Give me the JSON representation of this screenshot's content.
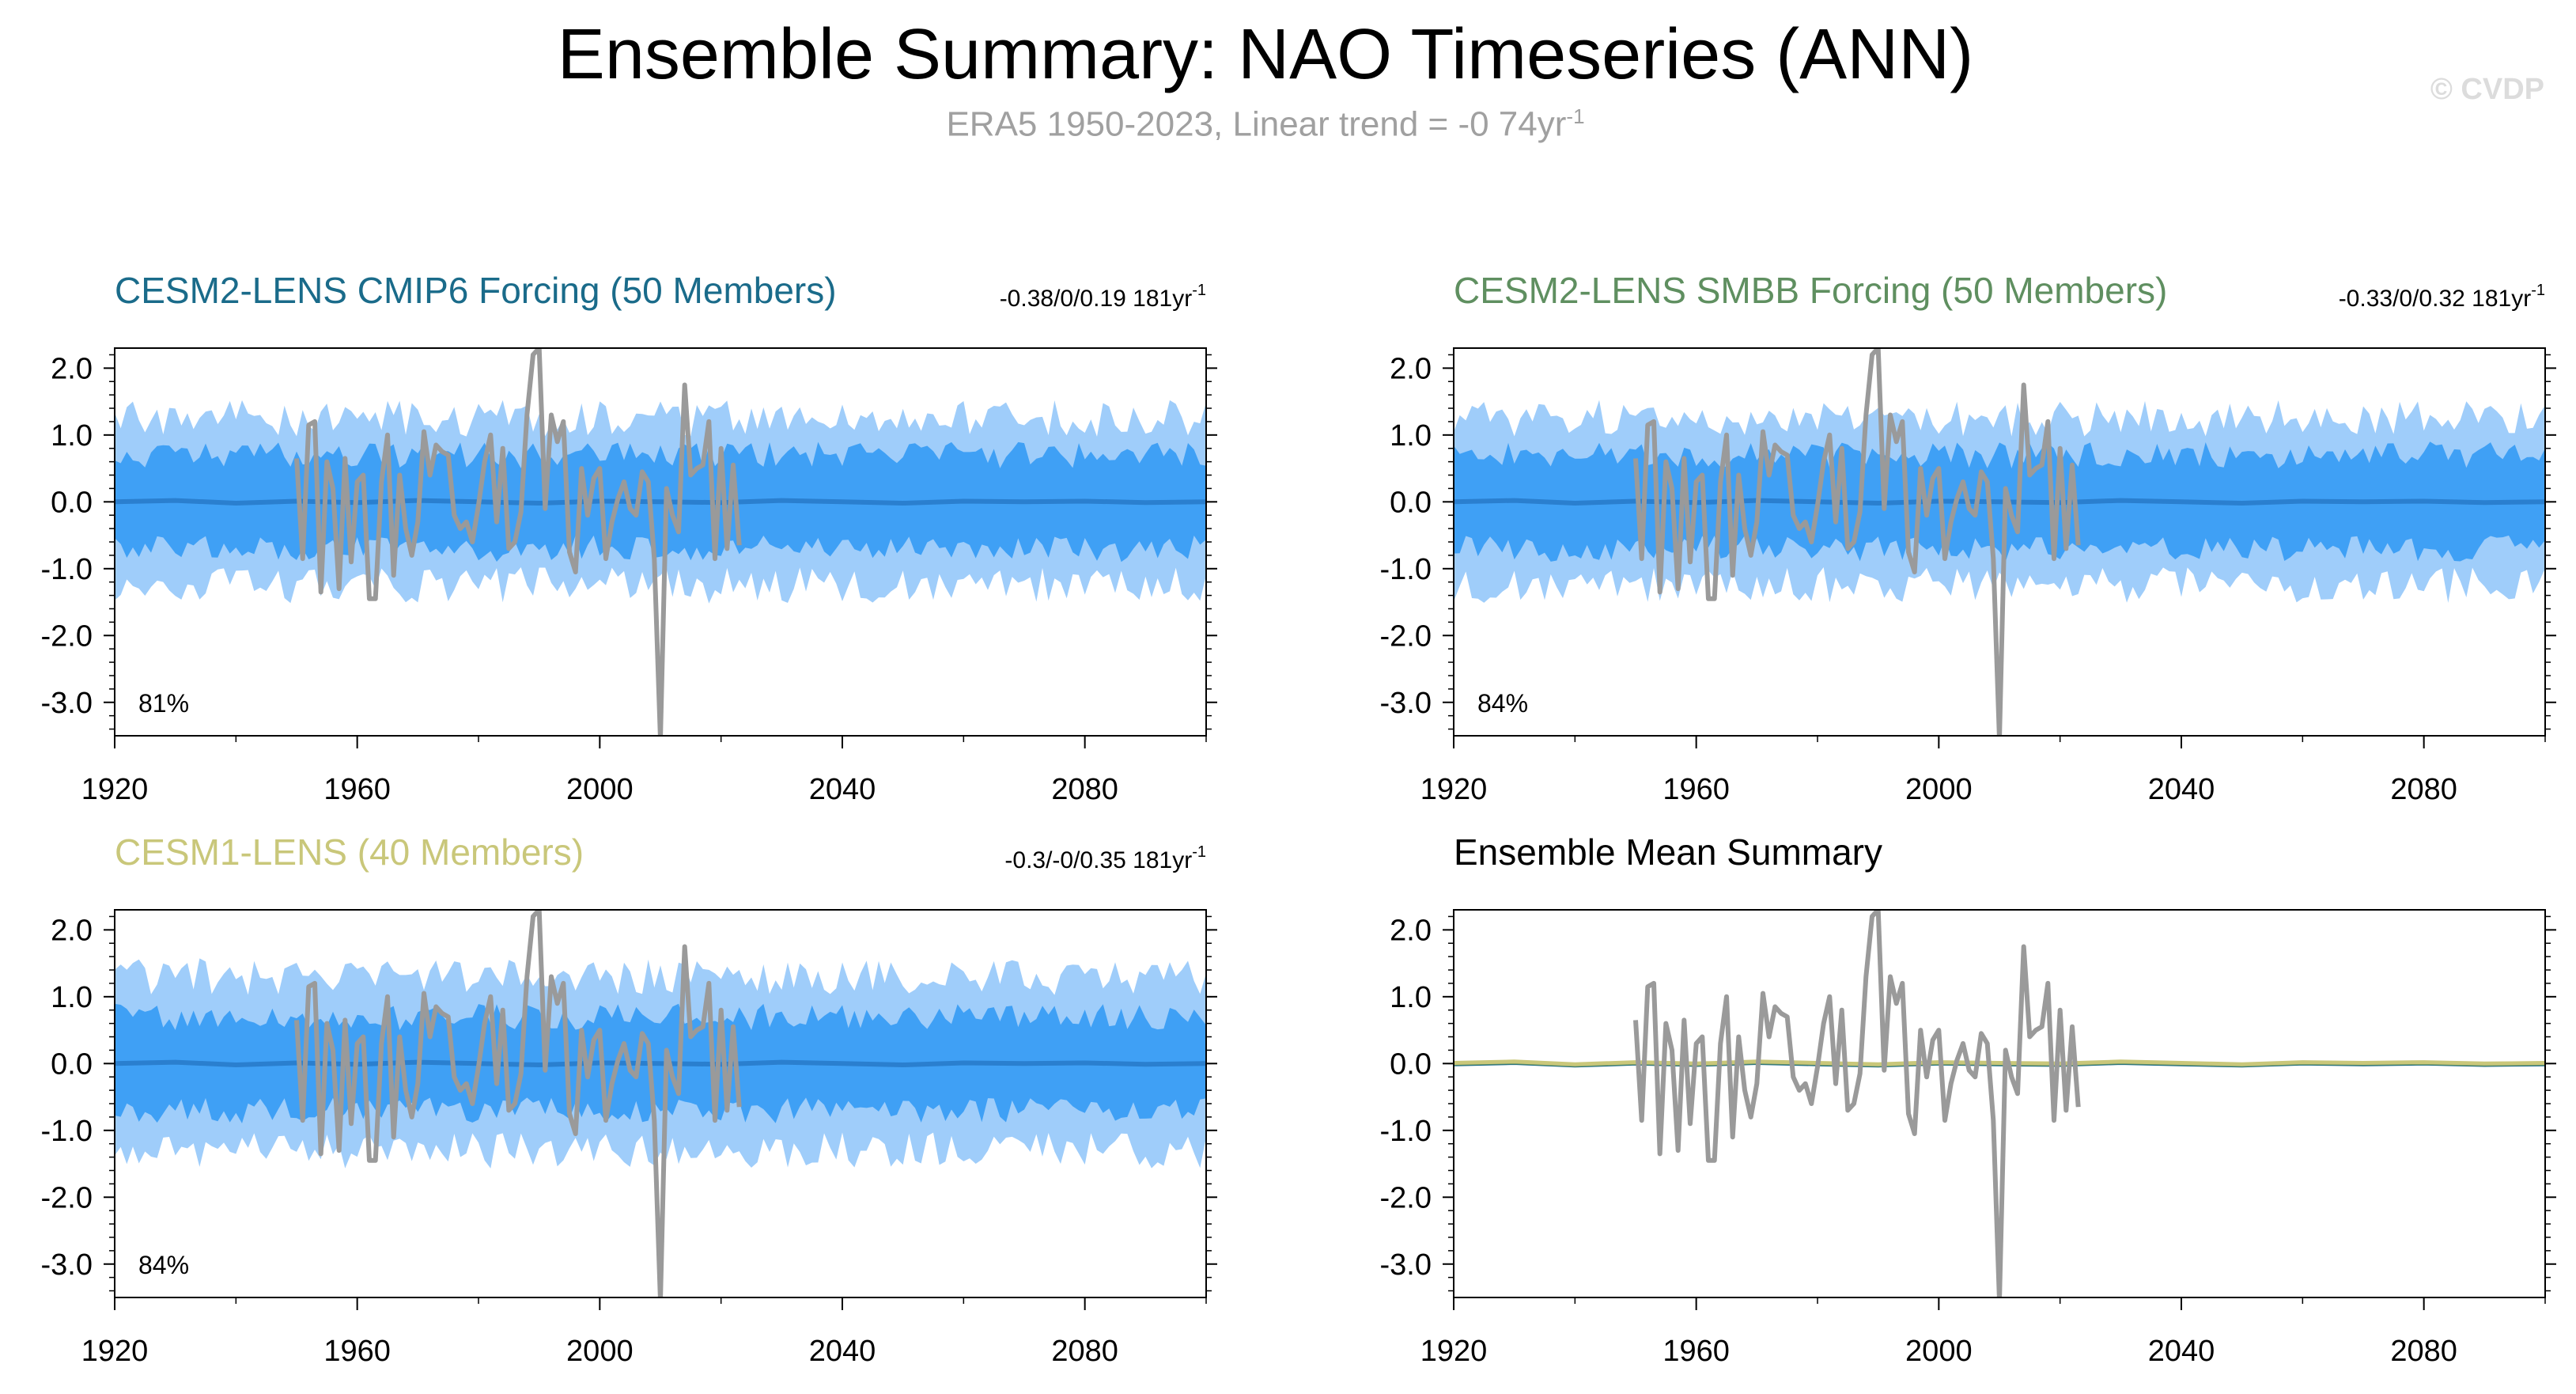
{
  "title": "Ensemble Summary: NAO Timeseries (ANN)",
  "subtitle_main": "ERA5 1950-2023, Linear trend = -0 74yr",
  "subtitle_sup": "-1",
  "copyright": "© CVDP",
  "colors": {
    "inner_band": "#3fa0f5",
    "outer_band": "#9fcdfa",
    "ensemble_mean": "#2a7fcf",
    "observations": "#9a9a9a",
    "cesm2_cmip6": "#1a6b8a",
    "cesm2_smbb": "#5f8f60",
    "cesm1": "#c9c77a"
  },
  "chart_data": [
    {
      "type": "area",
      "panel": "cesm2-cmip6",
      "title": "CESM2-LENS CMIP6 Forcing (50 Members)",
      "title_color": "#1a6b8a",
      "trend_text": "-0.38/0/0.19 181yr",
      "trend_sup": "-1",
      "percent_label": "81%",
      "xlim": [
        1920,
        2100
      ],
      "ylim": [
        -3.5,
        2.3
      ],
      "xticks": [
        "1920",
        "1960",
        "2000",
        "2040",
        "2080"
      ],
      "yticks": [
        "2.0",
        "1.0",
        "0.0",
        "-1.0",
        "-2.0",
        "-3.0"
      ],
      "bands": {
        "inner_half_width": 0.7,
        "outer_half_width": 1.25,
        "noise_seed": 11
      },
      "ensemble_mean_value": 0.0,
      "series": [
        {
          "values": "observations"
        }
      ]
    },
    {
      "type": "area",
      "panel": "cesm2-smbb",
      "title": "CESM2-LENS SMBB Forcing (50 Members)",
      "title_color": "#5f8f60",
      "trend_text": "-0.33/0/0.32 181yr",
      "trend_sup": "-1",
      "percent_label": "84%",
      "xlim": [
        1920,
        2100
      ],
      "ylim": [
        -3.5,
        2.3
      ],
      "xticks": [
        "1920",
        "1960",
        "2000",
        "2040",
        "2080"
      ],
      "yticks": [
        "2.0",
        "1.0",
        "0.0",
        "-1.0",
        "-2.0",
        "-3.0"
      ],
      "bands": {
        "inner_half_width": 0.7,
        "outer_half_width": 1.25,
        "noise_seed": 23
      },
      "ensemble_mean_value": 0.0,
      "series": [
        {
          "values": "observations"
        }
      ]
    },
    {
      "type": "area",
      "panel": "cesm1",
      "title": "CESM1-LENS (40 Members)",
      "title_color": "#c9c77a",
      "trend_text": "-0.3/-0/0.35 181yr",
      "trend_sup": "-1",
      "percent_label": "84%",
      "xlim": [
        1920,
        2100
      ],
      "ylim": [
        -3.5,
        2.3
      ],
      "xticks": [
        "1920",
        "1960",
        "2000",
        "2040",
        "2080"
      ],
      "yticks": [
        "2.0",
        "1.0",
        "0.0",
        "-1.0",
        "-2.0",
        "-3.0"
      ],
      "bands": {
        "inner_half_width": 0.7,
        "outer_half_width": 1.3,
        "noise_seed": 37
      },
      "ensemble_mean_value": 0.0,
      "series": [
        {
          "values": "observations"
        }
      ]
    },
    {
      "type": "line",
      "panel": "ensemble-mean",
      "title": "Ensemble Mean Summary",
      "title_color": "#000000",
      "xlim": [
        1920,
        2100
      ],
      "ylim": [
        -3.5,
        2.3
      ],
      "xticks": [
        "1920",
        "1960",
        "2000",
        "2040",
        "2080"
      ],
      "yticks": [
        "2.0",
        "1.0",
        "0.0",
        "-1.0",
        "-2.0",
        "-3.0"
      ],
      "series": [
        {
          "color": "#1a6b8a",
          "values": "ensemble_mean"
        },
        {
          "color": "#5f8f60",
          "values": "ensemble_mean"
        },
        {
          "color": "#c9c77a",
          "values": "ensemble_mean"
        },
        {
          "color": "#9a9a9a",
          "values": "observations"
        }
      ]
    }
  ],
  "observations": {
    "years": [
      1950,
      1951,
      1952,
      1953,
      1954,
      1955,
      1956,
      1957,
      1958,
      1959,
      1960,
      1961,
      1962,
      1963,
      1964,
      1965,
      1966,
      1967,
      1968,
      1969,
      1970,
      1971,
      1972,
      1973,
      1974,
      1975,
      1976,
      1977,
      1978,
      1979,
      1980,
      1981,
      1982,
      1983,
      1984,
      1985,
      1986,
      1987,
      1988,
      1989,
      1990,
      1991,
      1992,
      1993,
      1994,
      1995,
      1996,
      1997,
      1998,
      1999,
      2000,
      2001,
      2002,
      2003,
      2004,
      2005,
      2006,
      2007,
      2008,
      2009,
      2010,
      2011,
      2012,
      2013,
      2014,
      2015,
      2016,
      2017,
      2018,
      2019,
      2020,
      2021,
      2022,
      2023
    ],
    "values": [
      0.65,
      -0.85,
      1.15,
      1.2,
      -1.35,
      0.6,
      0.2,
      -1.3,
      0.65,
      -0.9,
      0.3,
      0.4,
      -1.45,
      -1.45,
      0.3,
      1.0,
      -1.1,
      0.4,
      -0.4,
      -0.8,
      -0.3,
      1.05,
      0.4,
      0.85,
      0.75,
      0.7,
      -0.2,
      -0.4,
      -0.3,
      -0.6,
      -0.05,
      0.6,
      1.0,
      -0.3,
      0.8,
      -0.7,
      -0.6,
      -0.15,
      1.3,
      2.2,
      2.3,
      -0.1,
      1.3,
      0.9,
      1.2,
      -0.75,
      -1.05,
      0.5,
      -0.2,
      0.35,
      0.5,
      -0.85,
      -0.3,
      0.05,
      0.3,
      -0.1,
      -0.2,
      0.45,
      0.3,
      -0.85,
      -3.55,
      0.2,
      -0.2,
      -0.45,
      1.75,
      0.4,
      0.5,
      0.55,
      1.2,
      -0.85,
      0.8,
      -0.7,
      0.55,
      -0.65
    ]
  },
  "ensemble_mean": {
    "years": [
      1920,
      1930,
      1940,
      1950,
      1960,
      1970,
      1980,
      1990,
      2000,
      2010,
      2020,
      2030,
      2040,
      2050,
      2060,
      2070,
      2080,
      2090,
      2100
    ],
    "values": [
      0.0,
      0.02,
      -0.02,
      0.01,
      -0.01,
      0.02,
      0.0,
      -0.02,
      0.01,
      0.0,
      -0.01,
      0.02,
      0.0,
      -0.02,
      0.01,
      0.0,
      0.01,
      -0.01,
      0.0
    ]
  }
}
